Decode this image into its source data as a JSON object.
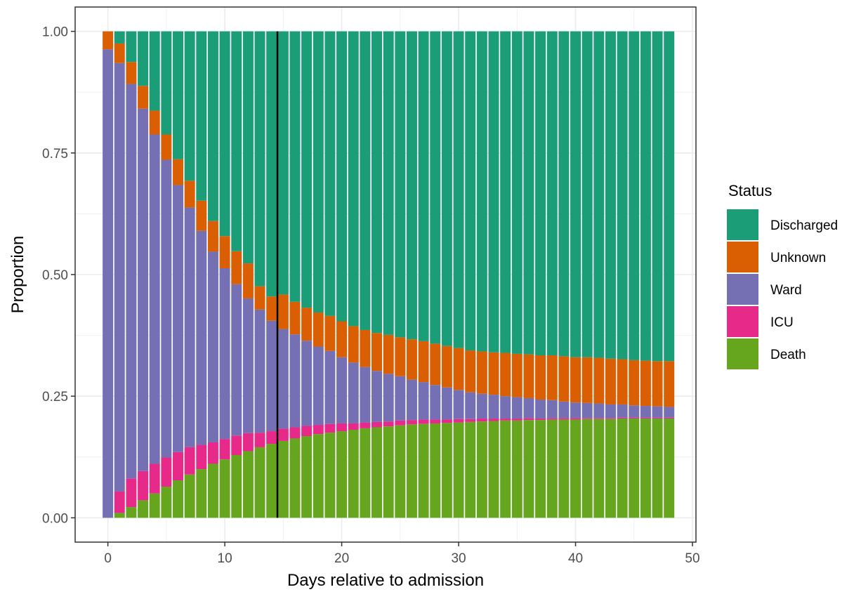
{
  "chart_data": {
    "type": "bar",
    "stacked": true,
    "xlabel": "Days relative to admission",
    "ylabel": "Proportion",
    "xlim": [
      -2.8,
      50.3
    ],
    "ylim": [
      -0.05,
      1.05
    ],
    "xticks": [
      0,
      10,
      20,
      30,
      40,
      50
    ],
    "yticks": [
      0,
      0.25,
      0.5,
      0.75,
      1
    ],
    "ytick_labels": [
      "0.00",
      "0.25",
      "0.50",
      "0.75",
      "1.00"
    ],
    "grid": true,
    "vline_x": 14.5,
    "legend_position": "right",
    "legend_title": "Status",
    "legend_order": [
      "Discharged",
      "Unknown",
      "Ward",
      "ICU",
      "Death"
    ],
    "stack_order": [
      "Death",
      "ICU",
      "Ward",
      "Unknown",
      "Discharged"
    ],
    "colors": {
      "Discharged": "#1b9e77",
      "Unknown": "#d95f02",
      "Ward": "#7570b3",
      "ICU": "#e7298a",
      "Death": "#66a61e"
    },
    "x": [
      0,
      1,
      2,
      3,
      4,
      5,
      6,
      7,
      8,
      9,
      10,
      11,
      12,
      13,
      14,
      15,
      16,
      17,
      18,
      19,
      20,
      21,
      22,
      23,
      24,
      25,
      26,
      27,
      28,
      29,
      30,
      31,
      32,
      33,
      34,
      35,
      36,
      37,
      38,
      39,
      40,
      41,
      42,
      43,
      44,
      45,
      46,
      47,
      48
    ],
    "series": [
      {
        "name": "Death",
        "values": [
          0.0,
          0.01,
          0.022,
          0.036,
          0.05,
          0.064,
          0.077,
          0.089,
          0.1,
          0.111,
          0.12,
          0.129,
          0.137,
          0.145,
          0.152,
          0.158,
          0.163,
          0.168,
          0.172,
          0.175,
          0.178,
          0.181,
          0.184,
          0.186,
          0.188,
          0.19,
          0.192,
          0.193,
          0.194,
          0.195,
          0.196,
          0.197,
          0.198,
          0.199,
          0.2,
          0.2,
          0.201,
          0.201,
          0.202,
          0.202,
          0.202,
          0.203,
          0.203,
          0.203,
          0.204,
          0.204,
          0.204,
          0.204,
          0.204
        ]
      },
      {
        "name": "ICU",
        "values": [
          0.0,
          0.044,
          0.059,
          0.06,
          0.061,
          0.06,
          0.058,
          0.056,
          0.05,
          0.044,
          0.042,
          0.04,
          0.037,
          0.03,
          0.026,
          0.025,
          0.023,
          0.021,
          0.019,
          0.018,
          0.016,
          0.013,
          0.012,
          0.011,
          0.01,
          0.01,
          0.009,
          0.009,
          0.008,
          0.007,
          0.007,
          0.006,
          0.006,
          0.005,
          0.004,
          0.004,
          0.004,
          0.003,
          0.003,
          0.003,
          0.003,
          0.002,
          0.002,
          0.002,
          0.002,
          0.002,
          0.002,
          0.002,
          0.002
        ]
      },
      {
        "name": "Ward",
        "values": [
          0.963,
          0.881,
          0.811,
          0.745,
          0.677,
          0.612,
          0.549,
          0.493,
          0.44,
          0.392,
          0.351,
          0.311,
          0.277,
          0.253,
          0.227,
          0.205,
          0.191,
          0.175,
          0.161,
          0.15,
          0.136,
          0.125,
          0.114,
          0.105,
          0.098,
          0.091,
          0.083,
          0.077,
          0.071,
          0.066,
          0.06,
          0.055,
          0.051,
          0.049,
          0.046,
          0.044,
          0.041,
          0.039,
          0.037,
          0.034,
          0.032,
          0.031,
          0.03,
          0.028,
          0.027,
          0.025,
          0.024,
          0.023,
          0.022
        ]
      },
      {
        "name": "Unknown",
        "values": [
          0.037,
          0.04,
          0.045,
          0.047,
          0.049,
          0.052,
          0.053,
          0.055,
          0.062,
          0.063,
          0.066,
          0.068,
          0.072,
          0.048,
          0.05,
          0.071,
          0.067,
          0.068,
          0.07,
          0.072,
          0.074,
          0.075,
          0.076,
          0.078,
          0.08,
          0.08,
          0.083,
          0.084,
          0.085,
          0.085,
          0.086,
          0.086,
          0.087,
          0.087,
          0.089,
          0.089,
          0.09,
          0.091,
          0.092,
          0.093,
          0.093,
          0.094,
          0.094,
          0.094,
          0.093,
          0.093,
          0.093,
          0.093,
          0.094
        ]
      },
      {
        "name": "Discharged",
        "values": [
          0.0,
          0.025,
          0.063,
          0.112,
          0.163,
          0.212,
          0.263,
          0.307,
          0.348,
          0.39,
          0.421,
          0.452,
          0.477,
          0.524,
          0.545,
          0.541,
          0.556,
          0.568,
          0.578,
          0.585,
          0.596,
          0.606,
          0.614,
          0.62,
          0.624,
          0.629,
          0.633,
          0.637,
          0.642,
          0.647,
          0.651,
          0.656,
          0.658,
          0.66,
          0.661,
          0.663,
          0.664,
          0.666,
          0.666,
          0.668,
          0.67,
          0.67,
          0.671,
          0.673,
          0.674,
          0.676,
          0.677,
          0.678,
          0.678
        ]
      }
    ]
  }
}
